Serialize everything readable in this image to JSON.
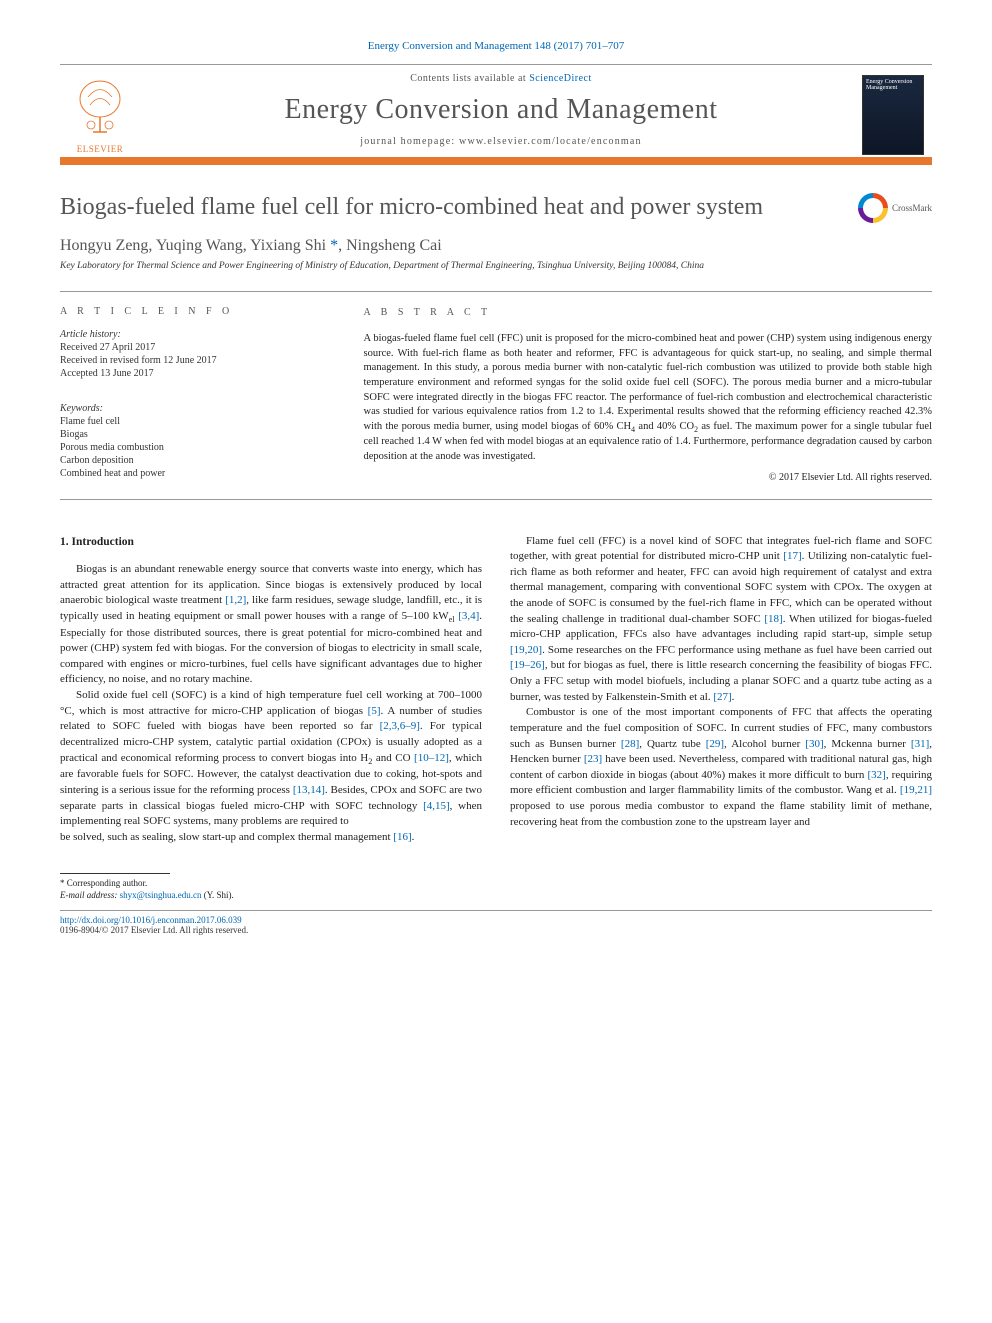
{
  "top_citation": "Energy Conversion and Management 148 (2017) 701–707",
  "masthead": {
    "publisher_label": "ELSEVIER",
    "contents_prefix": "Contents lists available at ",
    "contents_link": "ScienceDirect",
    "journal_name": "Energy Conversion and Management",
    "homepage_prefix": "journal homepage: ",
    "homepage_url": "www.elsevier.com/locate/enconman",
    "cover_text": "Energy Conversion Management"
  },
  "crossmark_label": "CrossMark",
  "article": {
    "title": "Biogas-fueled flame fuel cell for micro-combined heat and power system",
    "authors_html": "Hongyu Zeng, Yuqing Wang, Yixiang Shi *, Ningsheng Cai",
    "affiliation": "Key Laboratory for Thermal Science and Power Engineering of Ministry of Education, Department of Thermal Engineering, Tsinghua University, Beijing 100084, China"
  },
  "info": {
    "label": "A R T I C L E   I N F O",
    "history_label": "Article history:",
    "received": "Received 27 April 2017",
    "revised": "Received in revised form 12 June 2017",
    "accepted": "Accepted 13 June 2017",
    "keywords_label": "Keywords:",
    "keywords": [
      "Flame fuel cell",
      "Biogas",
      "Porous media combustion",
      "Carbon deposition",
      "Combined heat and power"
    ]
  },
  "abstract": {
    "label": "A B S T R A C T",
    "text": "A biogas-fueled flame fuel cell (FFC) unit is proposed for the micro-combined heat and power (CHP) system using indigenous energy source. With fuel-rich flame as both heater and reformer, FFC is advantageous for quick start-up, no sealing, and simple thermal management. In this study, a porous media burner with non-catalytic fuel-rich combustion was utilized to provide both stable high temperature environment and reformed syngas for the solid oxide fuel cell (SOFC). The porous media burner and a micro-tubular SOFC were integrated directly in the biogas FFC reactor. The performance of fuel-rich combustion and electrochemical characteristic was studied for various equivalence ratios from 1.2 to 1.4. Experimental results showed that the reforming efficiency reached 42.3% with the porous media burner, using model biogas of 60% CH₄ and 40% CO₂ as fuel. The maximum power for a single tubular fuel cell reached 1.4 W when fed with model biogas at an equivalence ratio of 1.4. Furthermore, performance degradation caused by carbon deposition at the anode was investigated.",
    "copyright": "© 2017 Elsevier Ltd. All rights reserved."
  },
  "body": {
    "section_heading": "1. Introduction",
    "col1_p1": "Biogas is an abundant renewable energy source that converts waste into energy, which has attracted great attention for its application. Since biogas is extensively produced by local anaerobic biological waste treatment [1,2], like farm residues, sewage sludge, landfill, etc., it is typically used in heating equipment or small power houses with a range of 5–100 kWel [3,4]. Especially for those distributed sources, there is great potential for micro-combined heat and power (CHP) system fed with biogas. For the conversion of biogas to electricity in small scale, compared with engines or micro-turbines, fuel cells have significant advantages due to higher efficiency, no noise, and no rotary machine.",
    "col1_p2": "Solid oxide fuel cell (SOFC) is a kind of high temperature fuel cell working at 700–1000 °C, which is most attractive for micro-CHP application of biogas [5]. A number of studies related to SOFC fueled with biogas have been reported so far [2,3,6–9]. For typical decentralized micro-CHP system, catalytic partial oxidation (CPOx) is usually adopted as a practical and economical reforming process to convert biogas into H₂ and CO [10–12], which are favorable fuels for SOFC. However, the catalyst deactivation due to coking, hot-spots and sintering is a serious issue for the reforming process [13,14]. Besides, CPOx and SOFC are two separate parts in classical biogas fueled micro-CHP with SOFC technology [4,15], when implementing real SOFC systems, many problems are required to",
    "col2_p1": "be solved, such as sealing, slow start-up and complex thermal management [16].",
    "col2_p2": "Flame fuel cell (FFC) is a novel kind of SOFC that integrates fuel-rich flame and SOFC together, with great potential for distributed micro-CHP unit [17]. Utilizing non-catalytic fuel-rich flame as both reformer and heater, FFC can avoid high requirement of catalyst and extra thermal management, comparing with conventional SOFC system with CPOx. The oxygen at the anode of SOFC is consumed by the fuel-rich flame in FFC, which can be operated without the sealing challenge in traditional dual-chamber SOFC [18]. When utilized for biogas-fueled micro-CHP application, FFCs also have advantages including rapid start-up, simple setup [19,20]. Some researches on the FFC performance using methane as fuel have been carried out [19–26], but for biogas as fuel, there is little research concerning the feasibility of biogas FFC. Only a FFC setup with model biofuels, including a planar SOFC and a quartz tube acting as a burner, was tested by Falkenstein-Smith et al. [27].",
    "col2_p3": "Combustor is one of the most important components of FFC that affects the operating temperature and the fuel composition of SOFC. In current studies of FFC, many combustors such as Bunsen burner [28], Quartz tube [29], Alcohol burner [30], Mckenna burner [31], Hencken burner [23] have been used. Nevertheless, compared with traditional natural gas, high content of carbon dioxide in biogas (about 40%) makes it more difficult to burn [32], requiring more efficient combustion and larger flammability limits of the combustor. Wang et al. [19,21] proposed to use porous media combustor to expand the flame stability limit of methane, recovering heat from the combustion zone to the upstream layer and"
  },
  "footnote": {
    "corresponding": "* Corresponding author.",
    "email_label": "E-mail address: ",
    "email": "shyx@tsinghua.edu.cn",
    "email_who": " (Y. Shi)."
  },
  "bottom": {
    "doi_url": "http://dx.doi.org/10.1016/j.enconman.2017.06.039",
    "issn_line": "0196-8904/© 2017 Elsevier Ltd. All rights reserved."
  },
  "colors": {
    "orange": "#e8772e",
    "link": "#0066b3",
    "grey_text": "#555555"
  }
}
